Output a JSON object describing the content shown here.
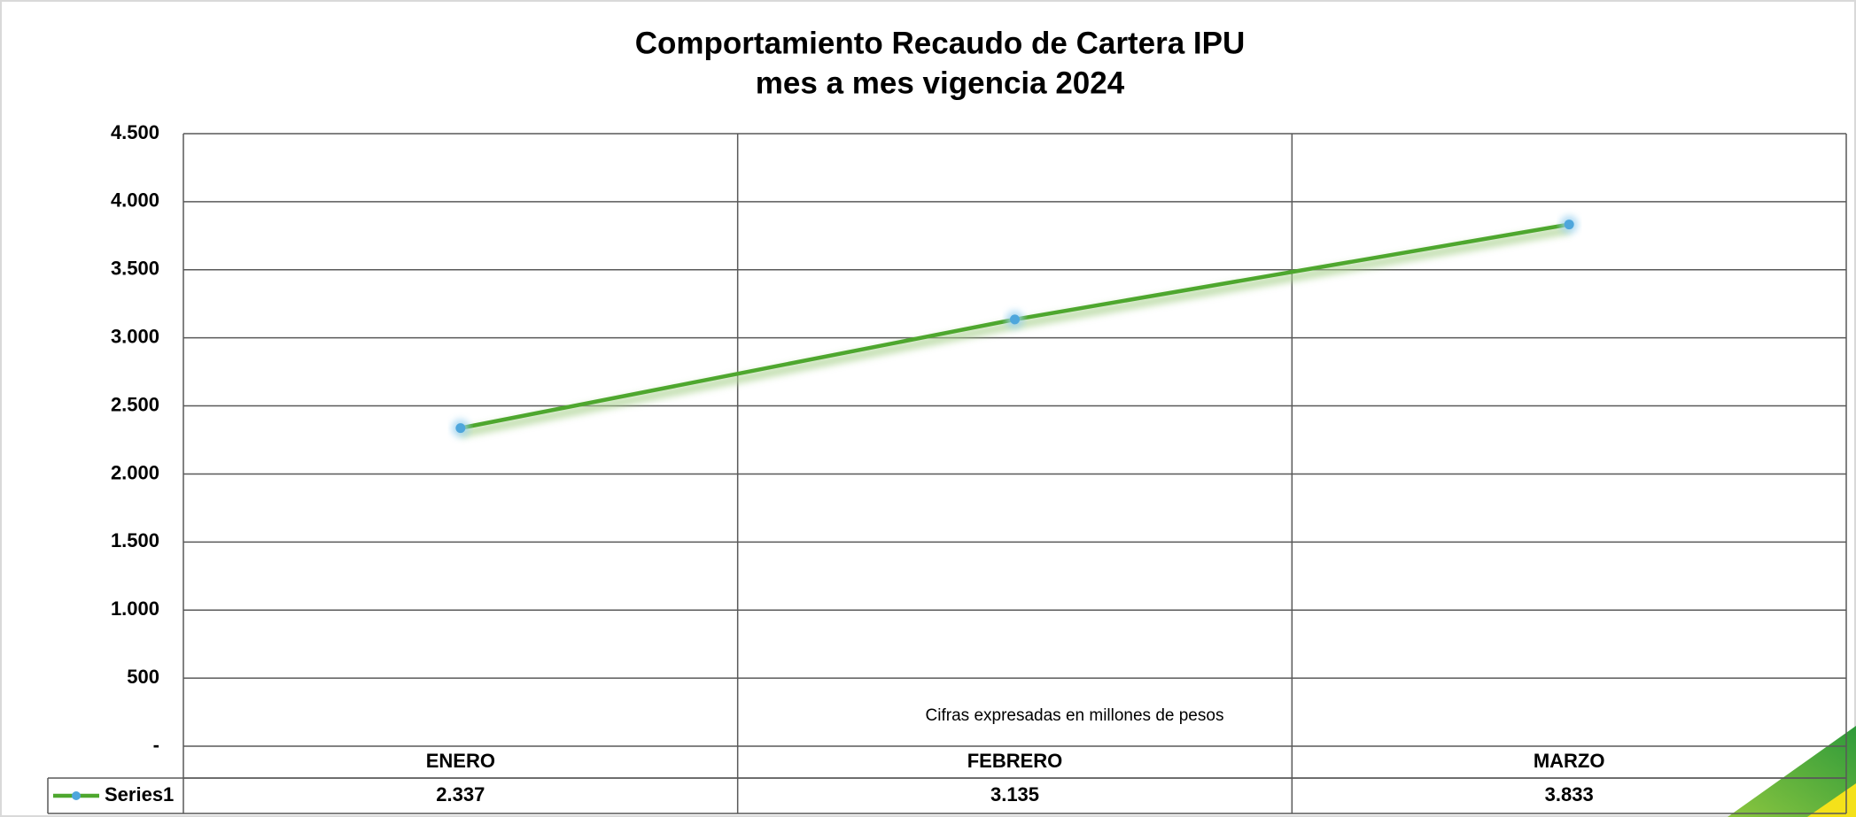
{
  "chart_data": {
    "type": "line",
    "title": "Comportamiento Recaudo de Cartera IPU",
    "subtitle": "mes a mes vigencia 2024",
    "annotation": "Cifras expresadas en millones de pesos",
    "categories": [
      "ENERO",
      "FEBRERO",
      "MARZO"
    ],
    "series": [
      {
        "name": "Series1",
        "color": "#4ea72e",
        "marker_color": "#4ea6dc",
        "values": [
          2337,
          3135,
          3833
        ],
        "value_labels": [
          "2.337",
          "3.135",
          "3.833"
        ]
      }
    ],
    "ylim": [
      0,
      4500
    ],
    "yticks": [
      {
        "value": 0,
        "label": "-"
      },
      {
        "value": 500,
        "label": "500"
      },
      {
        "value": 1000,
        "label": "1.000"
      },
      {
        "value": 1500,
        "label": "1.500"
      },
      {
        "value": 2000,
        "label": "2.000"
      },
      {
        "value": 2500,
        "label": "2.500"
      },
      {
        "value": 3000,
        "label": "3.000"
      },
      {
        "value": 3500,
        "label": "3.500"
      },
      {
        "value": 4000,
        "label": "4.000"
      },
      {
        "value": 4500,
        "label": "4.500"
      }
    ],
    "grid": true,
    "data_table": true
  }
}
